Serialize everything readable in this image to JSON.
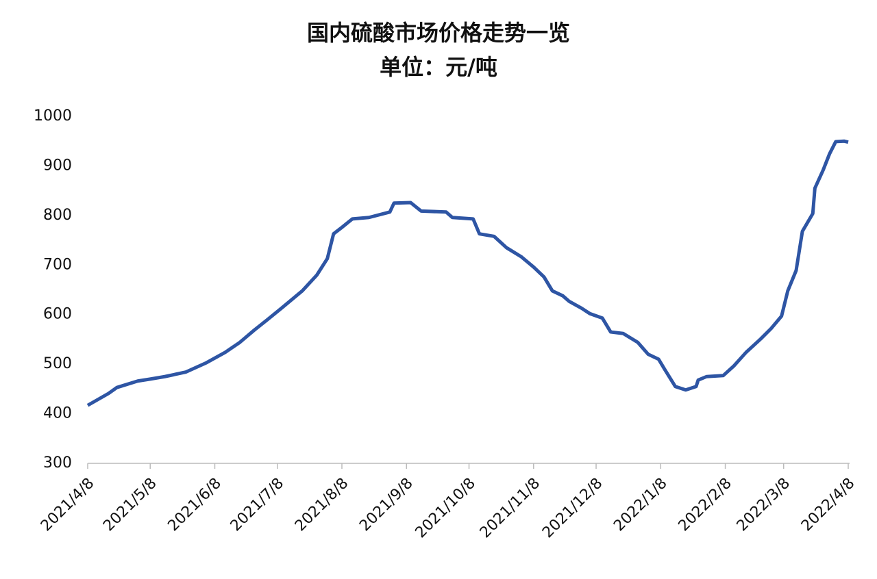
{
  "chart_data": {
    "type": "line",
    "title": "国内硫酸市场价格走势一览",
    "subtitle": "单位：元/吨",
    "x": [
      "2021-04-08",
      "2021-04-18",
      "2021-04-22",
      "2021-05-02",
      "2021-05-08",
      "2021-05-15",
      "2021-05-25",
      "2021-06-04",
      "2021-06-13",
      "2021-06-20",
      "2021-06-27",
      "2021-07-03",
      "2021-07-10",
      "2021-07-20",
      "2021-07-27",
      "2021-08-01",
      "2021-08-04",
      "2021-08-08",
      "2021-08-13",
      "2021-08-21",
      "2021-08-31",
      "2021-09-02",
      "2021-09-10",
      "2021-09-15",
      "2021-09-27",
      "2021-09-30",
      "2021-10-10",
      "2021-10-13",
      "2021-10-20",
      "2021-10-26",
      "2021-11-02",
      "2021-11-08",
      "2021-11-13",
      "2021-11-17",
      "2021-11-22",
      "2021-11-25",
      "2021-12-01",
      "2021-12-05",
      "2021-12-11",
      "2021-12-15",
      "2021-12-21",
      "2021-12-28",
      "2022-01-02",
      "2022-01-07",
      "2022-01-10",
      "2022-01-15",
      "2022-01-20",
      "2022-01-25",
      "2022-01-26",
      "2022-01-30",
      "2022-02-07",
      "2022-02-12",
      "2022-02-18",
      "2022-02-25",
      "2022-03-02",
      "2022-03-07",
      "2022-03-10",
      "2022-03-14",
      "2022-03-17",
      "2022-03-22",
      "2022-03-23",
      "2022-03-27",
      "2022-03-30",
      "2022-04-02",
      "2022-04-06",
      "2022-04-08"
    ],
    "series": [
      {
        "color": "#2e55a4",
        "values": [
          417,
          441,
          453,
          466,
          470,
          475,
          484,
          503,
          524,
          544,
          569,
          589,
          613,
          648,
          680,
          713,
          763,
          776,
          793,
          796,
          807,
          825,
          826,
          809,
          807,
          796,
          793,
          763,
          758,
          735,
          717,
          696,
          676,
          648,
          638,
          627,
          613,
          602,
          593,
          565,
          562,
          544,
          520,
          510,
          489,
          455,
          448,
          455,
          468,
          475,
          477,
          496,
          524,
          551,
          572,
          597,
          648,
          689,
          768,
          804,
          855,
          892,
          924,
          949,
          950,
          948
        ]
      }
    ],
    "xlim": [
      "2021-04-08",
      "2022-04-08"
    ],
    "xticks": [
      {
        "value": "2021-04-08",
        "label": "2021/4/8"
      },
      {
        "value": "2021-05-08",
        "label": "2021/5/8"
      },
      {
        "value": "2021-06-08",
        "label": "2021/6/8"
      },
      {
        "value": "2021-07-08",
        "label": "2021/7/8"
      },
      {
        "value": "2021-08-08",
        "label": "2021/8/8"
      },
      {
        "value": "2021-09-08",
        "label": "2021/9/8"
      },
      {
        "value": "2021-10-08",
        "label": "2021/10/8"
      },
      {
        "value": "2021-11-08",
        "label": "2021/11/8"
      },
      {
        "value": "2021-12-08",
        "label": "2021/12/8"
      },
      {
        "value": "2022-01-08",
        "label": "2022/1/8"
      },
      {
        "value": "2022-02-08",
        "label": "2022/2/8"
      },
      {
        "value": "2022-03-08",
        "label": "2022/3/8"
      },
      {
        "value": "2022-04-08",
        "label": "2022/4/8"
      }
    ],
    "ylim": [
      300,
      1000
    ],
    "yticks": [
      300,
      400,
      500,
      600,
      700,
      800,
      900,
      1000
    ],
    "grid": false
  }
}
